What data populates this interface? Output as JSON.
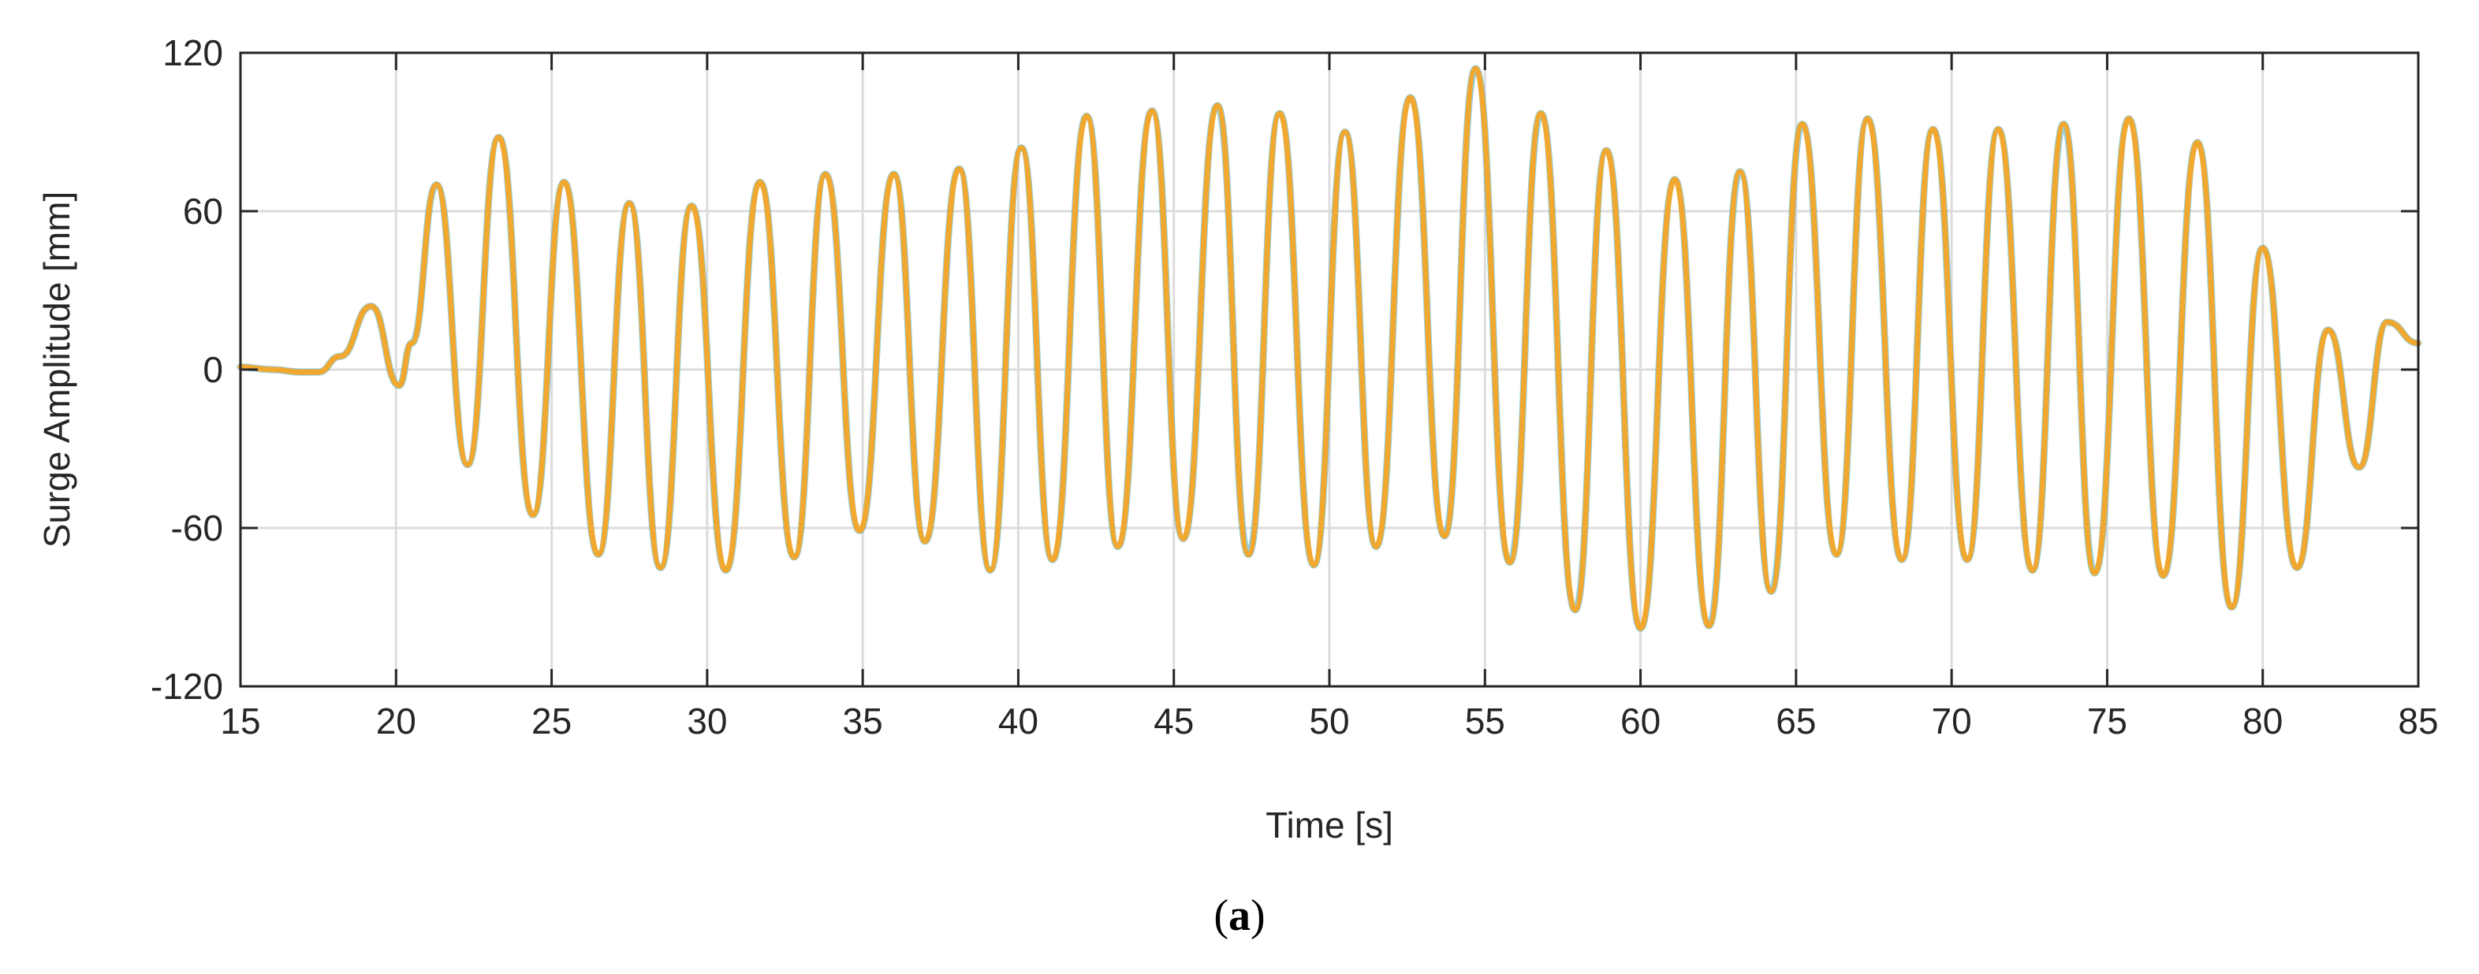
{
  "chart_data": {
    "type": "line",
    "xlabel": "Time [s]",
    "ylabel": "Surge Amplitude [mm]",
    "caption_open": "(",
    "caption_letter": "a",
    "caption_close": ")",
    "xlim": [
      15,
      85
    ],
    "ylim": [
      -120,
      120
    ],
    "xticks": [
      15,
      20,
      25,
      30,
      35,
      40,
      45,
      50,
      55,
      60,
      65,
      70,
      75,
      80,
      85
    ],
    "yticks": [
      -120,
      -60,
      0,
      60,
      120
    ],
    "grid": true,
    "legend": "none",
    "colors": {
      "series_main": "#f0a830",
      "series_under": "#3aa8c8",
      "axis": "#262626",
      "grid": "#dcdcdc"
    },
    "series": [
      {
        "x": [
          15.0,
          16.0,
          17.0,
          17.5,
          18.2,
          19.2,
          20.1,
          20.5,
          21.3,
          22.3,
          23.3,
          24.4,
          25.4,
          26.5,
          27.5,
          28.5,
          29.5,
          30.6,
          31.7,
          32.8,
          33.8,
          34.9,
          36.0,
          37.0,
          38.1,
          39.1,
          40.1,
          41.1,
          42.2,
          43.2,
          44.3,
          45.3,
          46.4,
          47.4,
          48.4,
          49.5,
          50.5,
          51.5,
          52.6,
          53.7,
          54.7,
          55.8,
          56.8,
          57.9,
          58.9,
          60.0,
          61.1,
          62.2,
          63.2,
          64.2,
          65.2,
          66.3,
          67.3,
          68.4,
          69.4,
          70.5,
          71.5,
          72.6,
          73.6,
          74.6,
          75.7,
          76.8,
          77.9,
          79.0,
          80.0,
          81.1,
          82.1,
          83.1,
          84.0,
          85.0
        ],
        "values": [
          1,
          0,
          -1,
          -1,
          5,
          24,
          -6,
          10,
          70,
          -36,
          88,
          -55,
          71,
          -70,
          63,
          -75,
          62,
          -76,
          71,
          -71,
          74,
          -61,
          74,
          -65,
          76,
          -76,
          84,
          -72,
          96,
          -67,
          98,
          -64,
          100,
          -70,
          97,
          -74,
          90,
          -67,
          103,
          -63,
          114,
          -73,
          97,
          -91,
          83,
          -98,
          72,
          -97,
          75,
          -84,
          93,
          -70,
          95,
          -72,
          91,
          -72,
          91,
          -76,
          93,
          -77,
          95,
          -78,
          86,
          -90,
          46,
          -75,
          15,
          -37,
          18,
          10
        ]
      }
    ]
  }
}
